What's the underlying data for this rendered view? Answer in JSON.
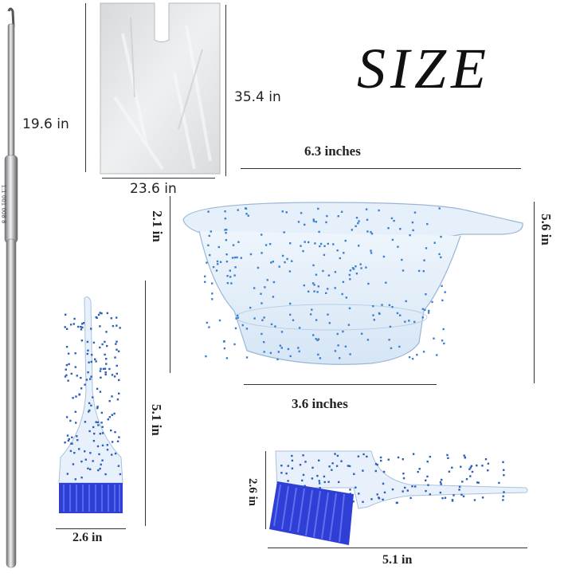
{
  "title": "SIZE",
  "labels": {
    "bag_height": "35.4 in",
    "bag_side": "19.6 in",
    "bag_width": "23.6 in",
    "bowl_width": "6.3 inches",
    "bowl_depth": "2.1 in",
    "bowl_height": "5.6 in",
    "bowl_base": "3.6 inches",
    "brush_height": "5.1 in",
    "brush_width": "2.6 in",
    "brush2_height": "2.6 in",
    "brush2_length": "5.1 in"
  },
  "hook_marking": "1.1 001 008 8",
  "colors": {
    "bristle_blue": "#2f3fd6",
    "glitter_blue": "#3d7fd0",
    "bowl_tint": "#dbe9f7",
    "bag_gray": "#e4e6e8"
  }
}
